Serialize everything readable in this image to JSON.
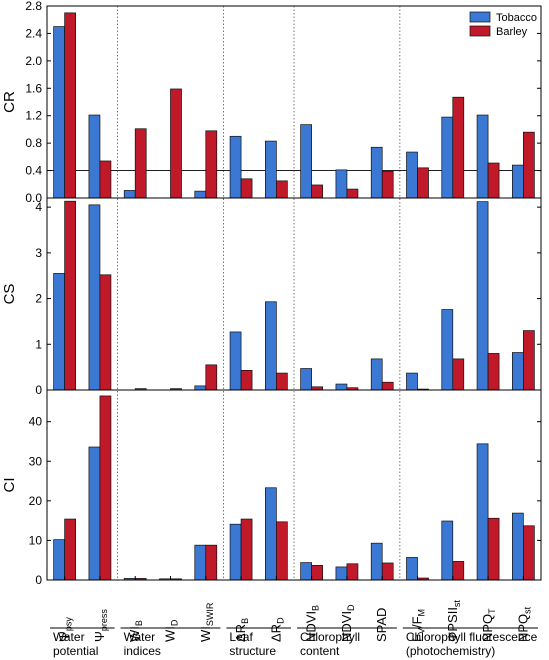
{
  "chart_data": {
    "type": "bar",
    "categories": [
      "ψpsy",
      "ψpress",
      "WIB",
      "WID",
      "WISWIR",
      "ΔRB",
      "ΔRD",
      "NDVIB",
      "NDVID",
      "SPAD",
      "FV/FM",
      "ΦPSIIst",
      "NPQT",
      "NPQst"
    ],
    "category_labels": [
      {
        "main": "Ψ",
        "sub": "psy"
      },
      {
        "main": "Ψ",
        "sub": "press"
      },
      {
        "main": "WI",
        "sub": "B"
      },
      {
        "main": "WI",
        "sub": "D"
      },
      {
        "main": "WI",
        "sub": "SWIR"
      },
      {
        "main": "ΔR",
        "sub": "B"
      },
      {
        "main": "ΔR",
        "sub": "D"
      },
      {
        "main": "NDVI",
        "sub": "B"
      },
      {
        "main": "NDVI",
        "sub": "D"
      },
      {
        "main": "SPAD",
        "sub": ""
      },
      {
        "main": "F",
        "sub": "V",
        "mid": "/F",
        "sub2": "M"
      },
      {
        "main": "ΦPSII",
        "sub": "st"
      },
      {
        "main": "NPQ",
        "sub": "T"
      },
      {
        "main": "NPQ",
        "sub": "st"
      }
    ],
    "legend": [
      {
        "name": "Tobacco",
        "color": "#3a78d4"
      },
      {
        "name": "Barley",
        "color": "#c0192a"
      }
    ],
    "legend_position": "top-right",
    "panels": [
      {
        "ylabel": "CR",
        "ylim": [
          0,
          2.8
        ],
        "yticks": [
          "0.0",
          "0.4",
          "0.8",
          "1.2",
          "1.6",
          "2.0",
          "2.4",
          "2.8"
        ],
        "reference_line": 0.4,
        "series": [
          {
            "name": "Tobacco",
            "values": [
              2.5,
              1.21,
              0.11,
              0.0,
              0.1,
              0.9,
              0.83,
              1.07,
              0.41,
              0.74,
              0.67,
              1.18,
              1.21,
              0.48
            ]
          },
          {
            "name": "Barley",
            "values": [
              2.7,
              0.54,
              1.01,
              1.59,
              0.98,
              0.28,
              0.25,
              0.19,
              0.13,
              0.39,
              0.44,
              1.47,
              0.51,
              0.96
            ]
          }
        ]
      },
      {
        "ylabel": "CS",
        "ylim": [
          0,
          4.2
        ],
        "yticks": [
          "0",
          "1",
          "2",
          "3",
          "4"
        ],
        "series": [
          {
            "name": "Tobacco",
            "values": [
              2.55,
              4.05,
              0.0,
              0.0,
              0.09,
              1.27,
              1.93,
              0.47,
              0.13,
              0.68,
              0.37,
              1.76,
              4.12,
              0.82
            ]
          },
          {
            "name": "Barley",
            "values": [
              4.13,
              2.52,
              0.03,
              0.03,
              0.55,
              0.43,
              0.37,
              0.07,
              0.05,
              0.17,
              0.02,
              0.68,
              0.8,
              1.3
            ]
          }
        ]
      },
      {
        "ylabel": "CI",
        "ylim": [
          0,
          48
        ],
        "yticks": [
          "0",
          "10",
          "20",
          "30",
          "40"
        ],
        "series": [
          {
            "name": "Tobacco",
            "values": [
              10.2,
              33.6,
              0.4,
              0.3,
              8.8,
              14.1,
              23.3,
              4.4,
              3.3,
              9.3,
              5.7,
              14.9,
              34.4,
              16.9
            ]
          },
          {
            "name": "Barley",
            "values": [
              15.4,
              46.5,
              0.4,
              0.3,
              8.8,
              15.4,
              14.7,
              3.7,
              4.1,
              4.3,
              0.5,
              4.7,
              15.6,
              13.7
            ]
          }
        ]
      }
    ],
    "groups": [
      {
        "lines": [
          "Water",
          "potential"
        ],
        "range": [
          0,
          1
        ]
      },
      {
        "lines": [
          "Water",
          "indices"
        ],
        "range": [
          2,
          4
        ]
      },
      {
        "lines": [
          "Leaf",
          "structure"
        ],
        "range": [
          5,
          6
        ]
      },
      {
        "lines": [
          "Chlorophyll",
          "content"
        ],
        "range": [
          7,
          9
        ]
      },
      {
        "lines": [
          "Chlorophyll fluorescence",
          "(photochemistry)"
        ],
        "range": [
          10,
          13
        ]
      }
    ],
    "group_separators_after": [
      1,
      4,
      6,
      9
    ]
  }
}
